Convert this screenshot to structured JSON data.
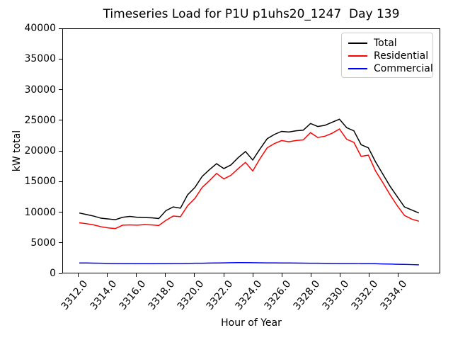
{
  "figure": {
    "title": "Timeseries Load for P1U p1uhs20_1247  Day 139",
    "xlabel": "Hour of Year",
    "ylabel": "kW total"
  },
  "axes": {
    "xtick_labels": [
      "3312.0",
      "3314.0",
      "3316.0",
      "3318.0",
      "3320.0",
      "3322.0",
      "3324.0",
      "3326.0",
      "3328.0",
      "3330.0",
      "3332.0",
      "3334.0"
    ],
    "ytick_labels": [
      "0",
      "5000",
      "10000",
      "15000",
      "20000",
      "25000",
      "30000",
      "35000",
      "40000"
    ]
  },
  "legend": {
    "entries": [
      {
        "label": "Total",
        "color": "#000000"
      },
      {
        "label": "Residential",
        "color": "#ff0000"
      },
      {
        "label": "Commercial",
        "color": "#0000ff"
      }
    ]
  },
  "chart_data": {
    "type": "line",
    "title": "Timeseries Load for P1U p1uhs20_1247  Day 139",
    "xlabel": "Hour of Year",
    "ylabel": "kW total",
    "xlim": [
      3310.9,
      3336.9
    ],
    "ylim": [
      0,
      40000
    ],
    "xticks": [
      3312,
      3314,
      3316,
      3318,
      3320,
      3322,
      3324,
      3326,
      3328,
      3330,
      3332,
      3334
    ],
    "yticks": [
      0,
      5000,
      10000,
      15000,
      20000,
      25000,
      30000,
      35000,
      40000
    ],
    "grid": false,
    "legend_position": "upper right",
    "x": [
      3312.0,
      3312.5,
      3313.0,
      3313.5,
      3314.0,
      3314.5,
      3315.0,
      3315.5,
      3316.0,
      3316.5,
      3317.0,
      3317.5,
      3318.0,
      3318.5,
      3319.0,
      3319.5,
      3320.0,
      3320.5,
      3321.0,
      3321.5,
      3322.0,
      3322.5,
      3323.0,
      3323.5,
      3324.0,
      3324.5,
      3325.0,
      3325.5,
      3326.0,
      3326.5,
      3327.0,
      3327.5,
      3328.0,
      3328.5,
      3329.0,
      3329.5,
      3330.0,
      3330.5,
      3331.0,
      3331.5,
      3332.0,
      3332.5,
      3333.0,
      3333.5,
      3334.0,
      3334.5,
      3335.0,
      3335.5
    ],
    "series": [
      {
        "name": "Total",
        "color": "#000000",
        "values": [
          9800,
          9550,
          9300,
          8950,
          8820,
          8700,
          9100,
          9250,
          9100,
          9050,
          9000,
          8900,
          10200,
          10800,
          10600,
          12800,
          14000,
          15800,
          16900,
          17900,
          17100,
          17700,
          18900,
          19900,
          18500,
          20300,
          22000,
          22700,
          23200,
          23100,
          23300,
          23400,
          24500,
          24000,
          24200,
          24700,
          25200,
          23800,
          23300,
          21000,
          20500,
          18200,
          16200,
          14200,
          12500,
          10800,
          10300,
          9800
        ]
      },
      {
        "name": "Residential",
        "color": "#ff0000",
        "values": [
          8200,
          8050,
          7850,
          7550,
          7350,
          7250,
          7800,
          7850,
          7800,
          7900,
          7850,
          7750,
          8600,
          9300,
          9200,
          11000,
          12200,
          14000,
          15100,
          16300,
          15400,
          16000,
          17100,
          18100,
          16700,
          18700,
          20500,
          21200,
          21700,
          21500,
          21700,
          21800,
          23000,
          22200,
          22400,
          22900,
          23600,
          21900,
          21400,
          19100,
          19300,
          16700,
          14800,
          12800,
          11000,
          9400,
          8800,
          8450
        ]
      },
      {
        "name": "Commercial",
        "color": "#0000ff",
        "values": [
          1600,
          1590,
          1570,
          1550,
          1530,
          1510,
          1500,
          1490,
          1480,
          1480,
          1480,
          1490,
          1500,
          1510,
          1520,
          1530,
          1550,
          1560,
          1580,
          1590,
          1620,
          1640,
          1650,
          1650,
          1640,
          1630,
          1620,
          1610,
          1600,
          1590,
          1580,
          1570,
          1560,
          1550,
          1540,
          1530,
          1520,
          1510,
          1510,
          1500,
          1500,
          1480,
          1450,
          1420,
          1390,
          1360,
          1330,
          1300
        ]
      }
    ]
  }
}
